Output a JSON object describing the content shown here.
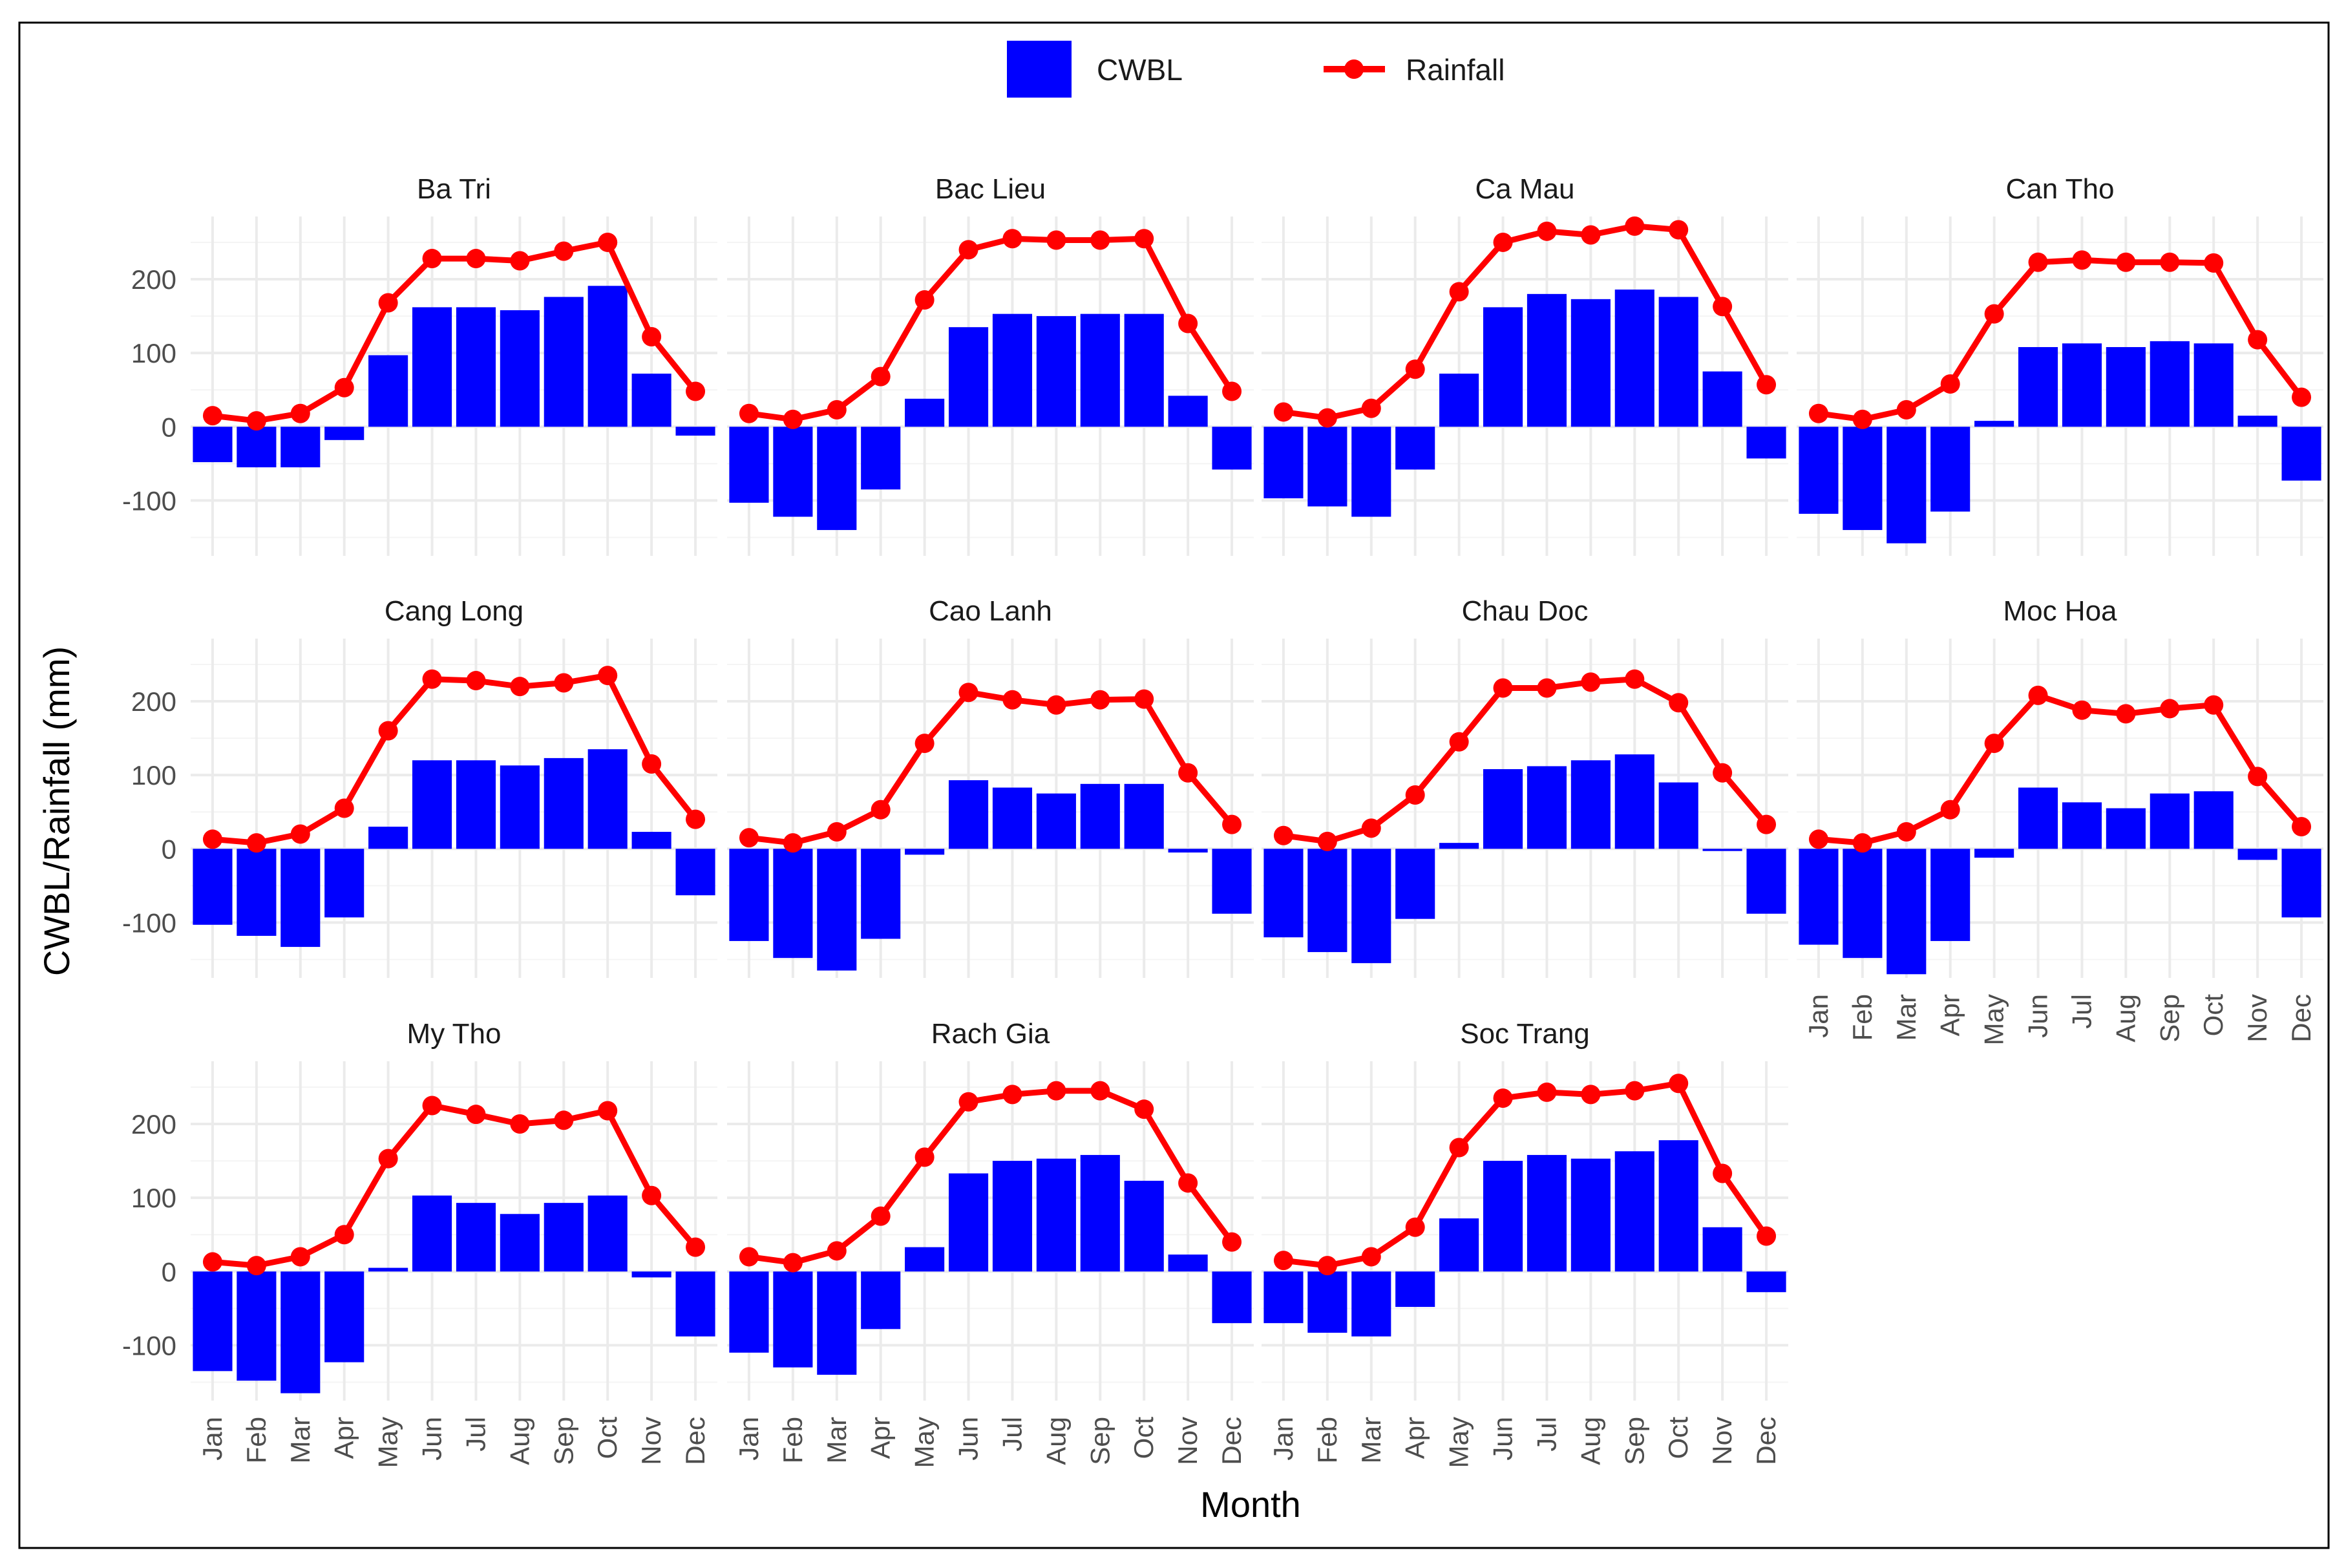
{
  "chart_data": {
    "type": "bar+line",
    "xlabel": "Month",
    "ylabel": "CWBL/Rainfall (mm)",
    "ylim": [
      -175,
      285
    ],
    "yticks": [
      -100,
      0,
      100,
      200
    ],
    "months": [
      "Jan",
      "Feb",
      "Mar",
      "Apr",
      "May",
      "Jun",
      "Jul",
      "Aug",
      "Sep",
      "Oct",
      "Nov",
      "Dec"
    ],
    "legend": {
      "position": "top",
      "entries": [
        {
          "label": "CWBL",
          "kind": "bar",
          "color": "#0000ff"
        },
        {
          "label": "Rainfall",
          "kind": "line",
          "color": "#ff0000"
        }
      ]
    },
    "colors": {
      "bar": "#0000ff",
      "line": "#ff0000"
    },
    "panels": [
      {
        "title": "Ba Tri",
        "cwbl": [
          -48,
          -55,
          -55,
          -18,
          97,
          162,
          162,
          158,
          176,
          191,
          72,
          -12
        ],
        "rainfall": [
          15,
          8,
          18,
          53,
          168,
          228,
          228,
          225,
          238,
          250,
          122,
          48
        ]
      },
      {
        "title": "Bac Lieu",
        "cwbl": [
          -103,
          -122,
          -140,
          -85,
          38,
          135,
          153,
          150,
          153,
          153,
          42,
          -58
        ],
        "rainfall": [
          18,
          10,
          23,
          68,
          172,
          240,
          255,
          253,
          253,
          255,
          140,
          48
        ]
      },
      {
        "title": "Ca Mau",
        "cwbl": [
          -97,
          -108,
          -122,
          -58,
          72,
          162,
          180,
          173,
          186,
          176,
          75,
          -43
        ],
        "rainfall": [
          20,
          12,
          25,
          78,
          183,
          250,
          265,
          260,
          272,
          267,
          163,
          57
        ]
      },
      {
        "title": "Can Tho",
        "cwbl": [
          -118,
          -140,
          -158,
          -115,
          8,
          108,
          113,
          108,
          116,
          113,
          15,
          -73
        ],
        "rainfall": [
          18,
          10,
          23,
          58,
          153,
          223,
          226,
          223,
          223,
          222,
          118,
          40
        ]
      },
      {
        "title": "Cang Long",
        "cwbl": [
          -103,
          -118,
          -133,
          -93,
          30,
          120,
          120,
          113,
          123,
          135,
          23,
          -63
        ],
        "rainfall": [
          13,
          8,
          20,
          55,
          160,
          230,
          228,
          220,
          225,
          235,
          115,
          40
        ]
      },
      {
        "title": "Cao Lanh",
        "cwbl": [
          -125,
          -148,
          -165,
          -122,
          -8,
          93,
          83,
          75,
          88,
          88,
          -5,
          -88
        ],
        "rainfall": [
          15,
          8,
          23,
          53,
          143,
          212,
          202,
          195,
          202,
          203,
          103,
          33
        ]
      },
      {
        "title": "Chau Doc",
        "cwbl": [
          -120,
          -140,
          -155,
          -95,
          8,
          108,
          112,
          120,
          128,
          90,
          -3,
          -88
        ],
        "rainfall": [
          18,
          10,
          28,
          73,
          145,
          218,
          218,
          226,
          230,
          198,
          103,
          33
        ]
      },
      {
        "title": "Moc Hoa",
        "cwbl": [
          -130,
          -148,
          -170,
          -125,
          -12,
          83,
          63,
          55,
          75,
          78,
          -15,
          -93
        ],
        "rainfall": [
          13,
          8,
          23,
          53,
          143,
          208,
          188,
          183,
          190,
          195,
          98,
          30
        ]
      },
      {
        "title": "My Tho",
        "cwbl": [
          -135,
          -148,
          -165,
          -123,
          5,
          103,
          93,
          78,
          93,
          103,
          -8,
          -88
        ],
        "rainfall": [
          13,
          8,
          20,
          50,
          153,
          225,
          213,
          200,
          205,
          218,
          103,
          33
        ]
      },
      {
        "title": "Rach Gia",
        "cwbl": [
          -110,
          -130,
          -140,
          -78,
          33,
          133,
          150,
          153,
          158,
          123,
          23,
          -70
        ],
        "rainfall": [
          20,
          12,
          28,
          75,
          155,
          230,
          240,
          245,
          245,
          220,
          120,
          40
        ]
      },
      {
        "title": "Soc Trang",
        "cwbl": [
          -70,
          -83,
          -88,
          -48,
          72,
          150,
          158,
          153,
          163,
          178,
          60,
          -28
        ],
        "rainfall": [
          15,
          8,
          20,
          60,
          168,
          235,
          243,
          240,
          245,
          255,
          133,
          48
        ]
      }
    ]
  }
}
